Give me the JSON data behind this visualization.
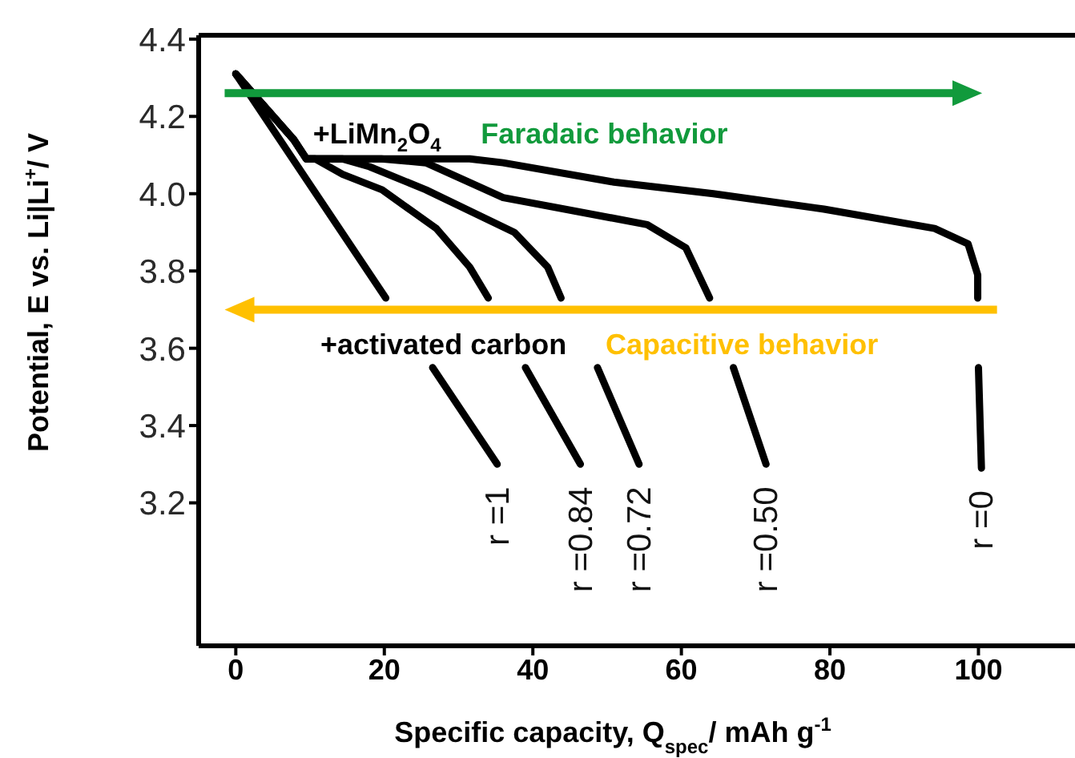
{
  "chart_data": {
    "type": "line",
    "xlabel": "Specific capacity, Q$_{spec}$/ mAh g$^{-1}$",
    "ylabel": "Potential, E vs. Li|Li$^{+}$/ V",
    "xlim": [
      -5,
      113
    ],
    "xticks": [
      0,
      20,
      40,
      60,
      80,
      100
    ],
    "ylim": [
      2.83,
      4.41
    ],
    "yticks": [
      3.2,
      3.4,
      3.6,
      3.8,
      {
        "value": 4.0,
        "label": "4.0"
      },
      4.2,
      4.4
    ],
    "grid": false,
    "marker": "none",
    "line_style": "solid",
    "annotations": [
      "+LiMn$_{2}$O$_{4}$",
      "Faradaic behavior",
      "+activated carbon",
      "Capacitive behavior"
    ],
    "series": [
      {
        "name": "r =1",
        "color": "#000000",
        "x": [
          0,
          20.2,
          23.5,
          26.5,
          35.2
        ],
        "values": [
          4.31,
          3.73,
          null,
          3.55,
          3.3
        ]
      },
      {
        "name": "r =0.84",
        "color": "#000000",
        "x": [
          0,
          7.8,
          9.5,
          10.7,
          14.4,
          19.7,
          27,
          31.5,
          34.0,
          36.8,
          39,
          46.4
        ],
        "values": [
          4.31,
          4.14,
          4.09,
          4.09,
          4.05,
          4.01,
          3.91,
          3.81,
          3.73,
          null,
          3.55,
          3.3
        ]
      },
      {
        "name": "r =0.72",
        "color": "#000000",
        "x": [
          0,
          7.8,
          9.5,
          14.4,
          18,
          25.6,
          37.5,
          42,
          43.8,
          46.5,
          48.7,
          54.3
        ],
        "values": [
          4.31,
          4.14,
          4.09,
          4.09,
          4.07,
          4.01,
          3.9,
          3.81,
          3.73,
          null,
          3.55,
          3.3
        ]
      },
      {
        "name": "r =0.50",
        "color": "#000000",
        "x": [
          0,
          7.8,
          9.5,
          19.6,
          25.6,
          36,
          55.4,
          60.6,
          63.8,
          65.6,
          67,
          71.4
        ],
        "values": [
          4.31,
          4.14,
          4.09,
          4.09,
          4.08,
          3.99,
          3.92,
          3.86,
          3.73,
          null,
          3.55,
          3.3
        ]
      },
      {
        "name": "r =0",
        "color": "#000000",
        "x": [
          0,
          7.8,
          9.5,
          31.5,
          36,
          50.9,
          64.3,
          79.2,
          94.1,
          98.6,
          99.9,
          99.9,
          99.95,
          100,
          100.4
        ],
        "values": [
          4.31,
          4.14,
          4.09,
          4.09,
          4.08,
          4.03,
          4.0,
          3.96,
          3.91,
          3.87,
          3.79,
          3.73,
          null,
          3.55,
          3.29
        ]
      }
    ]
  }
}
